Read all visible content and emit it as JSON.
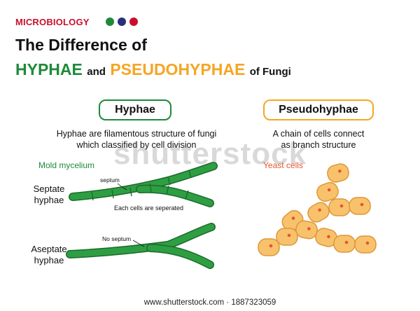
{
  "header": {
    "tag": "MICROBIOLOGY",
    "dot_colors": [
      "#1d8a3a",
      "#2a2f7a",
      "#c8102e"
    ],
    "title_line1": "The Difference of",
    "title_word1": "HYPHAE",
    "title_and": "and",
    "title_word2": "PSEUDOHYPHAE",
    "title_tail": "of Fungi"
  },
  "colors": {
    "green": "#1d8a3a",
    "orange": "#f5a623",
    "hypha_fill": "#2e9e43",
    "hypha_stroke": "#1b6b2b",
    "cell_fill": "#f7c26b",
    "cell_stroke": "#e0963a",
    "nucleus": "#e4572e",
    "yeast_label": "#e4572e"
  },
  "hyphae": {
    "heading": "Hyphae",
    "description_line1": "Hyphae are filamentous structure of fungi",
    "description_line2": "which classified by cell division",
    "sublabel": "Mold mycelium",
    "septate_line1": "Septate",
    "septate_line2": "hyphae",
    "septum_label": "septum",
    "separated_label": "Each cells are seperated",
    "aseptate_line1": "Aseptate",
    "aseptate_line2": "hyphae",
    "no_septum_label": "No septum"
  },
  "pseudohyphae": {
    "heading": "Pseudohyphae",
    "description_line1": "A chain of cells connect",
    "description_line2": "as branch structure",
    "sublabel": "Yeast cells"
  },
  "watermark": "shutterstock",
  "footer": "www.shutterstock.com · 1887323059"
}
